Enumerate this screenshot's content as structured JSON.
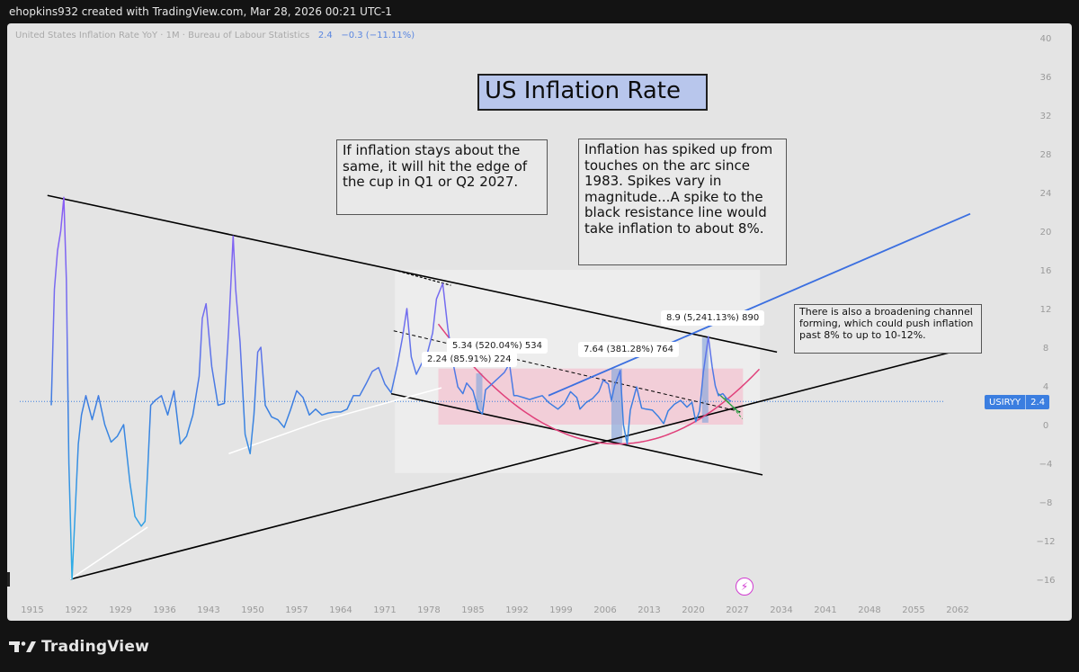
{
  "header": {
    "attribution": "ehopkins932 created with TradingView.com, Mar 28, 2026 00:21 UTC-1"
  },
  "legend": {
    "series_title": "United States Inflation Rate YoY · 1M · Bureau of Labour Statistics",
    "last_value": "2.4",
    "change": "−0.3 (−11.11%)"
  },
  "ticker": {
    "symbol": "USIRYY",
    "value": "2.4",
    "color": "#3b7ee0"
  },
  "title": "US Inflation Rate",
  "notes": {
    "cup": "If inflation stays about the same, it will hit the edge of the cup in Q1 or Q2 2027.",
    "arc": "Inflation has spiked up from touches on the arc since 1983. Spikes vary in magnitude...A spike to the black resistance line would take inflation to about 8%.",
    "channel": "There is also a broadening channel forming, which could push inflation past 8% to up to 10-12%."
  },
  "measure_labels": [
    {
      "text": "2.24 (85.91%) 224"
    },
    {
      "text": "5.34 (520.04%) 534"
    },
    {
      "text": "7.64 (381.28%) 764"
    },
    {
      "text": "8.9 (5,241.13%) 890"
    }
  ],
  "footer": {
    "brand": "TradingView"
  },
  "chart_data": {
    "type": "line",
    "x_tick_labels": [
      "1915",
      "1922",
      "1929",
      "1936",
      "1943",
      "1950",
      "1957",
      "1964",
      "1971",
      "1978",
      "1985",
      "1992",
      "1999",
      "2006",
      "2013",
      "2020",
      "2027",
      "2034",
      "2041",
      "2048",
      "2055",
      "2062"
    ],
    "y_tick_labels": [
      "40",
      "36",
      "32",
      "28",
      "24",
      "20",
      "16",
      "12",
      "8",
      "4",
      "0",
      "−4",
      "−8",
      "−12",
      "−16"
    ],
    "ylim": [
      -16,
      40
    ],
    "xlim": [
      1913,
      2068
    ],
    "colors": {
      "line_start": "#8b5cf6",
      "line_end": "#3b7ee0",
      "cup": "#e0407a",
      "trend": "#000000",
      "channel": "#3b6fe0",
      "support": "#ffffff"
    },
    "series": [
      {
        "name": "USIRYY",
        "x": [
          1918.0,
          1918.5,
          1919.0,
          1919.5,
          1920.0,
          1920.4,
          1920.8,
          1921.3,
          1921.8,
          1922.3,
          1922.8,
          1923.5,
          1924.5,
          1925.5,
          1926.5,
          1927.5,
          1928.5,
          1929.5,
          1930.5,
          1931.3,
          1932.3,
          1932.9,
          1933.3,
          1933.8,
          1934.5,
          1935.5,
          1936.5,
          1937.5,
          1938.5,
          1939.5,
          1940.5,
          1941.5,
          1942.0,
          1942.6,
          1943.5,
          1944.5,
          1945.5,
          1946.2,
          1946.9,
          1947.3,
          1948.0,
          1948.8,
          1949.6,
          1950.2,
          1950.8,
          1951.3,
          1952.0,
          1953.0,
          1954.0,
          1955.0,
          1956.0,
          1957.0,
          1958.0,
          1959.0,
          1960.0,
          1961.0,
          1962.0,
          1963.0,
          1964.0,
          1965.0,
          1966.0,
          1967.0,
          1968.0,
          1969.0,
          1970.0,
          1971.0,
          1972.0,
          1973.0,
          1973.8,
          1974.5,
          1975.2,
          1976.0,
          1977.0,
          1977.8,
          1978.6,
          1979.2,
          1980.2,
          1981.0,
          1981.8,
          1982.6,
          1983.4,
          1984.0,
          1985.0,
          1985.8,
          1986.5,
          1987.0,
          1988.0,
          1989.0,
          1990.0,
          1990.8,
          1991.5,
          1992.0,
          1993.0,
          1994.0,
          1995.0,
          1996.0,
          1997.0,
          1998.5,
          1999.5,
          2000.5,
          2001.5,
          2002.0,
          2003.0,
          2004.0,
          2005.0,
          2005.7,
          2006.5,
          2007.0,
          2007.5,
          2008.4,
          2008.9,
          2009.5,
          2010.0,
          2011.0,
          2011.8,
          2012.5,
          2013.5,
          2014.5,
          2015.3,
          2016.0,
          2017.0,
          2018.0,
          2019.0,
          2019.8,
          2020.4,
          2021.0,
          2021.6,
          2022.4,
          2023.0,
          2023.5,
          2024.0,
          2024.7,
          2025.3,
          2026.0
        ],
        "values": [
          2.0,
          14,
          18,
          20.0,
          23.5,
          15,
          -4,
          -16,
          -9,
          -2,
          1,
          3,
          0.5,
          3,
          0,
          -1.8,
          -1.2,
          0.0,
          -6,
          -9.5,
          -10.5,
          -10,
          -5,
          2,
          2.5,
          3.0,
          1.0,
          3.5,
          -2,
          -1.2,
          1.0,
          5.0,
          11,
          12.5,
          6,
          2,
          2.2,
          10,
          19.5,
          14,
          8.5,
          -1,
          -3,
          1,
          7.5,
          8,
          2,
          0.8,
          0.5,
          -0.3,
          1.5,
          3.5,
          2.8,
          1,
          1.6,
          1,
          1.2,
          1.3,
          1.3,
          1.6,
          3,
          3.0,
          4.2,
          5.5,
          5.9,
          4.2,
          3.3,
          6.2,
          9,
          12.0,
          7,
          5.2,
          6.5,
          7.5,
          9.5,
          13,
          14.6,
          10,
          6.5,
          3.9,
          3.2,
          4.3,
          3.5,
          1.6,
          1.1,
          3.6,
          4.2,
          4.8,
          5.4,
          6.3,
          3,
          3,
          2.8,
          2.6,
          2.8,
          3,
          2.3,
          1.6,
          2.2,
          3.4,
          2.8,
          1.6,
          2.3,
          2.7,
          3.4,
          4.6,
          4.2,
          2.5,
          4,
          5.6,
          0.0,
          -2.0,
          1.5,
          3.9,
          1.7,
          1.6,
          1.5,
          0.8,
          0.1,
          1.4,
          2.1,
          2.5,
          1.8,
          2.3,
          0.3,
          1.4,
          5.4,
          9.1,
          6.0,
          4.0,
          3.0,
          3.2,
          2.7,
          2.4
        ]
      }
    ]
  }
}
